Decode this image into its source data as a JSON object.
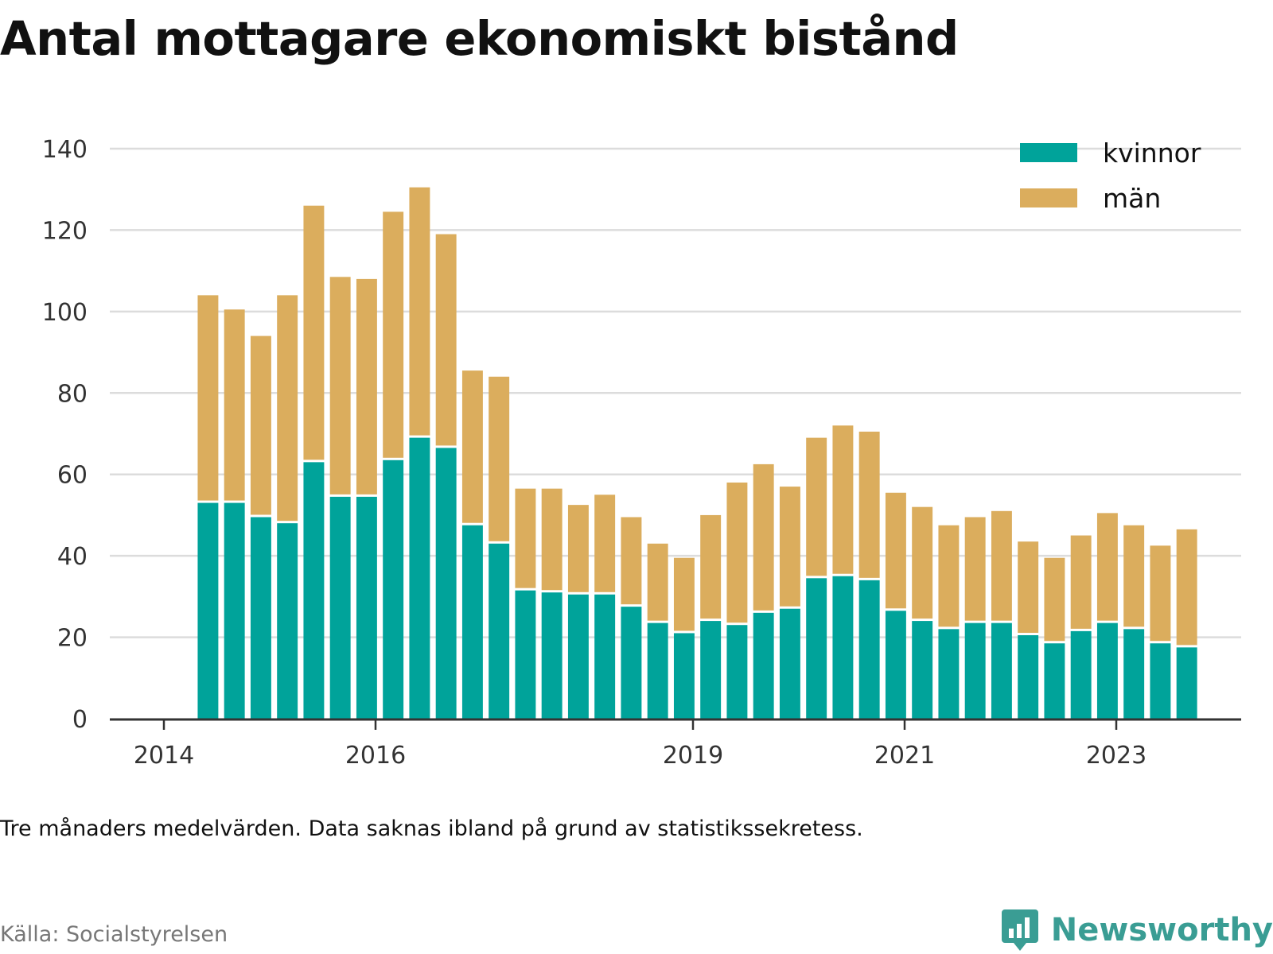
{
  "title": "Antal mottagare ekonomiskt bistånd",
  "note": "Tre månaders medelvärden. Data saknas ibland på grund av statistikssekretess.",
  "source": "Källa: Socialstyrelsen",
  "brand": {
    "name": "Newsworthy",
    "icon": "newsworthy-logo-icon",
    "color": "#3a9d94"
  },
  "colors": {
    "kvinnor": "#00a39a",
    "man": "#dbad5d",
    "grid": "#dcdcdc",
    "axis": "#333333"
  },
  "chart_data": {
    "type": "bar",
    "stacked": true,
    "title": "Antal mottagare ekonomiskt bistånd",
    "xlabel": "",
    "ylabel": "",
    "ylim": [
      0,
      140
    ],
    "y_ticks": [
      0,
      20,
      40,
      60,
      80,
      100,
      120,
      140
    ],
    "x_ticks": [
      "2014",
      "2016",
      "2019",
      "2021",
      "2023"
    ],
    "grid": true,
    "legend_position": "top-right",
    "x": [
      "2014-05",
      "2014-08",
      "2014-11",
      "2015-02",
      "2015-05",
      "2015-08",
      "2015-11",
      "2016-02",
      "2016-05",
      "2016-08",
      "2016-11",
      "2017-02",
      "2017-05",
      "2017-08",
      "2017-11",
      "2018-02",
      "2018-05",
      "2018-08",
      "2018-11",
      "2019-02",
      "2019-05",
      "2019-08",
      "2019-11",
      "2020-02",
      "2020-05",
      "2020-08",
      "2020-11",
      "2021-02",
      "2021-05",
      "2021-08",
      "2021-11",
      "2022-02",
      "2022-05",
      "2022-08",
      "2022-11",
      "2023-02",
      "2023-05",
      "2023-08"
    ],
    "series": [
      {
        "name": "kvinnor",
        "values": [
          53,
          53,
          49.5,
          48,
          63,
          54.5,
          54.5,
          63.5,
          69,
          66.5,
          47.5,
          43,
          31.5,
          31,
          30.5,
          30.5,
          27.5,
          23.5,
          21,
          24,
          23,
          26,
          27,
          34.5,
          35,
          34,
          26.5,
          24,
          22,
          23.5,
          23.5,
          20.5,
          18.5,
          21.5,
          23.5,
          22,
          18.5,
          17.5
        ]
      },
      {
        "name": "män",
        "values": [
          51,
          47.5,
          44.5,
          56,
          63,
          54,
          53.5,
          61,
          61.5,
          52.5,
          38,
          41,
          25,
          25.5,
          22,
          24.5,
          22,
          19.5,
          18.5,
          26,
          35,
          36.5,
          30,
          34.5,
          37,
          36.5,
          29,
          28,
          25.5,
          26,
          27.5,
          23,
          21,
          23.5,
          27,
          25.5,
          24,
          29
        ]
      }
    ]
  }
}
